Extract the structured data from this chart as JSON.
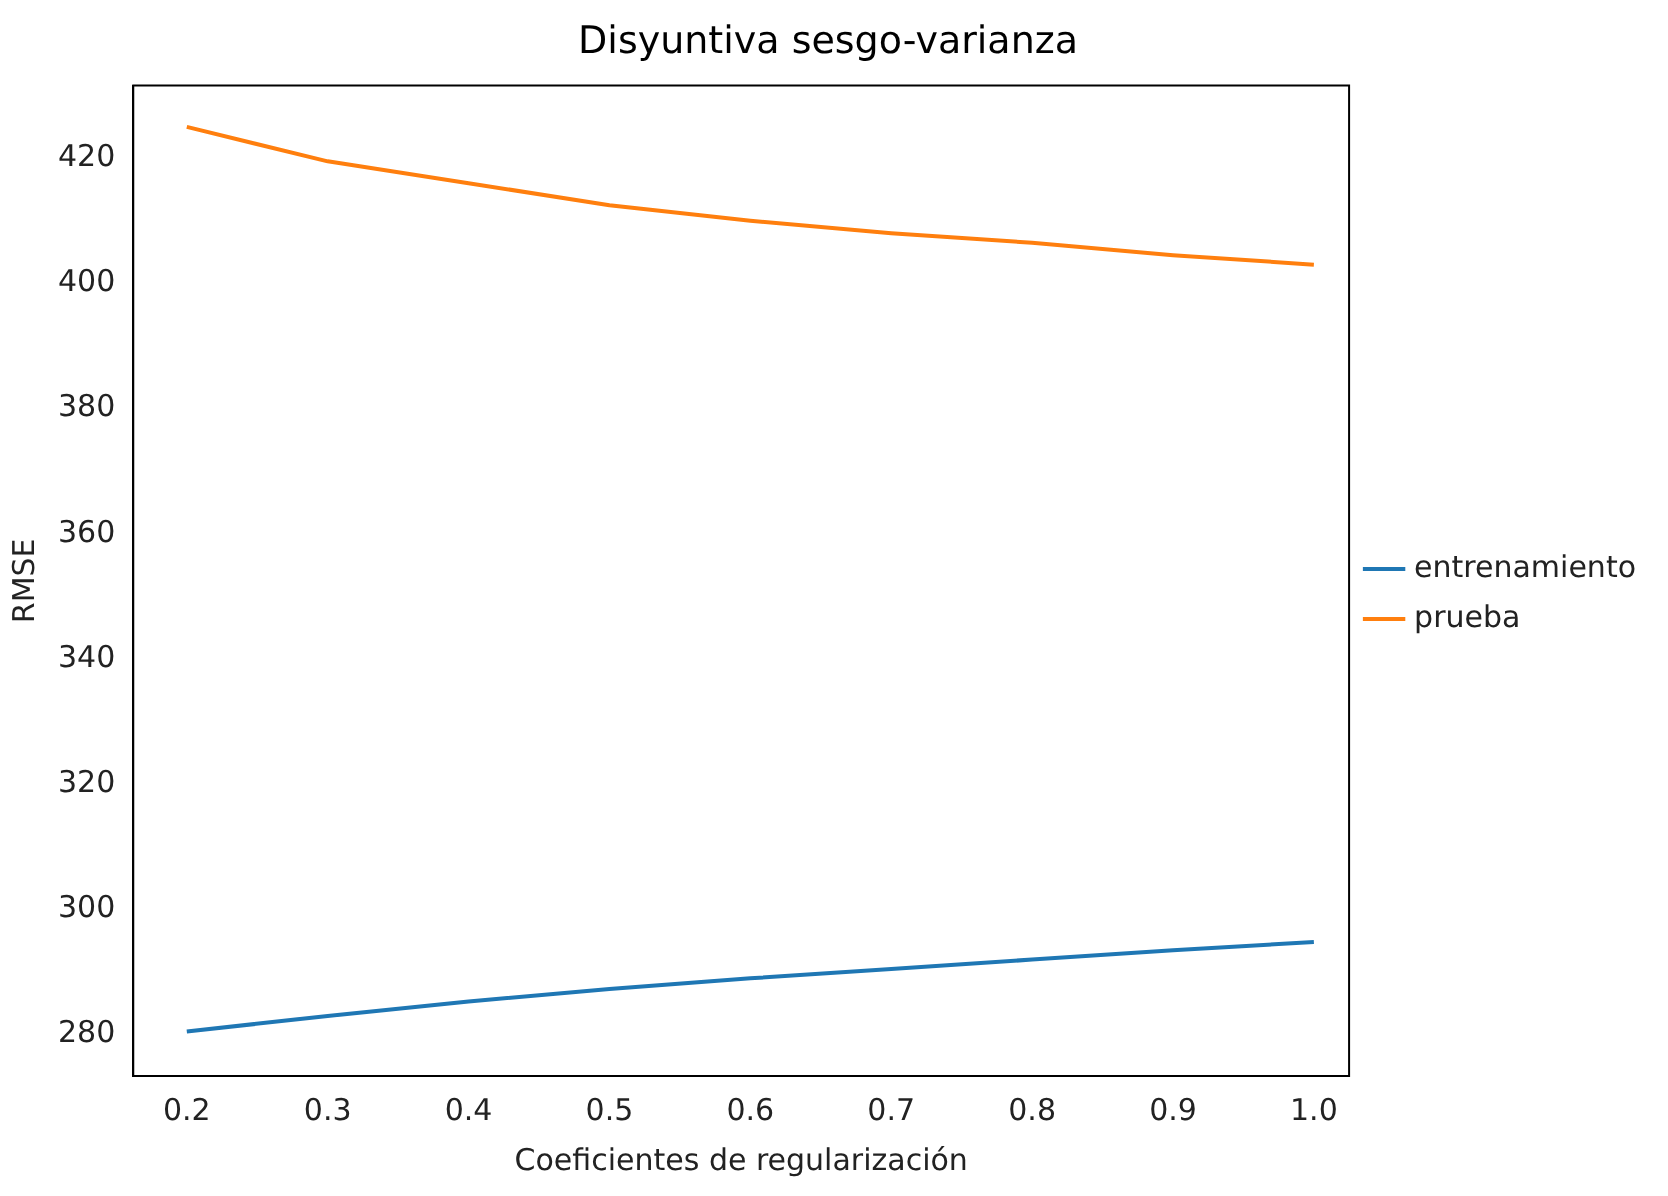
{
  "chart_data": {
    "type": "line",
    "title": "Disyuntiva sesgo-varianza",
    "xlabel": "Coeficientes de regularización",
    "ylabel": "RMSE",
    "x": [
      0.2,
      0.3,
      0.4,
      0.5,
      0.6,
      0.7,
      0.8,
      0.9,
      1.0
    ],
    "series": [
      {
        "name": "entrenamiento",
        "color": "#1f77b4",
        "values": [
          280.5,
          283,
          285.3,
          287.3,
          289,
          290.5,
          292,
          293.5,
          294.8
        ]
      },
      {
        "name": "prueba",
        "color": "#ff7f0e",
        "values": [
          425,
          419.5,
          416,
          412.5,
          410,
          408,
          406.5,
          404.5,
          403
        ]
      }
    ],
    "xlim": [
      0.162,
      1.025
    ],
    "xticks": [
      0.2,
      0.3,
      0.4,
      0.5,
      0.6,
      0.7,
      0.8,
      0.9,
      {
        "value": 1,
        "label": "1.0"
      }
    ],
    "ylim": [
      273.4,
      431.6
    ],
    "yticks": [
      280,
      300,
      320,
      340,
      360,
      380,
      400,
      420
    ],
    "grid": false,
    "legend": "right",
    "marker": "none",
    "line_style": "solid"
  }
}
